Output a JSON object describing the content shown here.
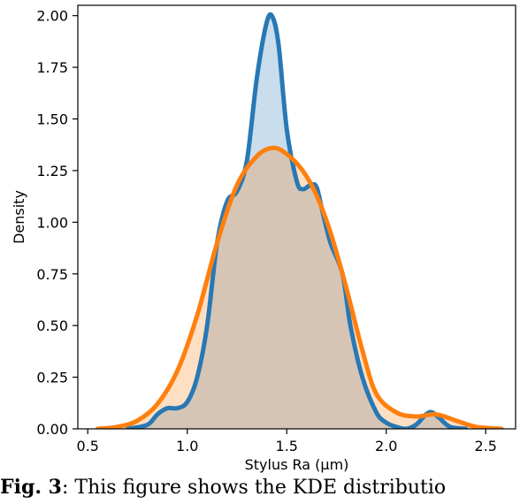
{
  "chart_data": {
    "type": "area",
    "xlabel": "Stylus Ra (µm)",
    "ylabel": "Density",
    "xlim": [
      0.45,
      2.65
    ],
    "ylim": [
      0.0,
      2.05
    ],
    "xticks": [
      0.5,
      1.0,
      1.5,
      2.0,
      2.5
    ],
    "xtick_labels": [
      "0.5",
      "1.0",
      "1.5",
      "2.0",
      "2.5"
    ],
    "yticks": [
      0.0,
      0.25,
      0.5,
      0.75,
      1.0,
      1.25,
      1.5,
      1.75,
      2.0
    ],
    "ytick_labels": [
      "0.00",
      "0.25",
      "0.50",
      "0.75",
      "1.00",
      "1.25",
      "1.50",
      "1.75",
      "2.00"
    ],
    "grid": false,
    "series": [
      {
        "color": "#2878b5",
        "fill": "#c9dcec",
        "x": [
          0.7,
          0.8,
          0.85,
          0.9,
          0.95,
          1.0,
          1.05,
          1.1,
          1.15,
          1.2,
          1.25,
          1.3,
          1.35,
          1.4,
          1.43,
          1.46,
          1.5,
          1.55,
          1.58,
          1.62,
          1.65,
          1.68,
          1.72,
          1.78,
          1.82,
          1.88,
          1.95,
          2.0,
          2.05,
          2.1,
          2.15,
          2.2,
          2.23,
          2.27,
          2.32,
          2.4
        ],
        "y": [
          0.0,
          0.02,
          0.07,
          0.1,
          0.1,
          0.13,
          0.25,
          0.5,
          0.9,
          1.1,
          1.15,
          1.3,
          1.7,
          1.97,
          1.99,
          1.85,
          1.45,
          1.2,
          1.16,
          1.18,
          1.17,
          1.05,
          0.9,
          0.75,
          0.5,
          0.25,
          0.08,
          0.03,
          0.01,
          0.0,
          0.02,
          0.07,
          0.08,
          0.05,
          0.01,
          0.0
        ]
      },
      {
        "color": "#ff7f0e",
        "fill": "#fdd7b6",
        "x": [
          0.55,
          0.65,
          0.75,
          0.85,
          0.95,
          1.05,
          1.15,
          1.25,
          1.35,
          1.43,
          1.5,
          1.58,
          1.65,
          1.72,
          1.8,
          1.88,
          1.95,
          2.05,
          2.15,
          2.25,
          2.35,
          2.45,
          2.58
        ],
        "y": [
          0.0,
          0.01,
          0.04,
          0.12,
          0.28,
          0.55,
          0.9,
          1.18,
          1.32,
          1.36,
          1.33,
          1.25,
          1.13,
          0.95,
          0.68,
          0.38,
          0.17,
          0.08,
          0.06,
          0.07,
          0.04,
          0.01,
          0.0
        ]
      }
    ]
  },
  "caption": {
    "label": "Fig. 3",
    "text": ": This figure shows the KDE distributio"
  }
}
